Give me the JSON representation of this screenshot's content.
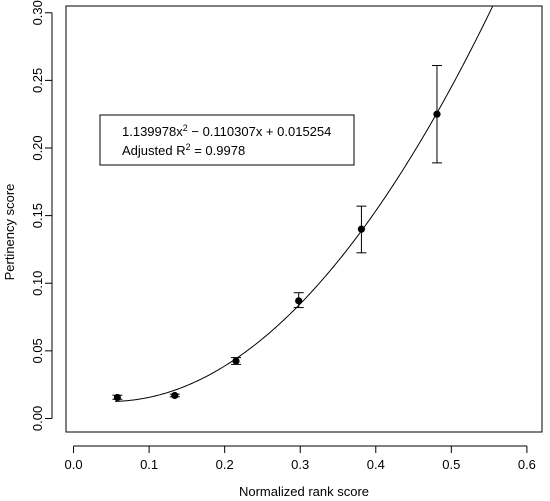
{
  "chart_data": {
    "type": "scatter",
    "title": "",
    "xlabel": "Normalized rank score",
    "ylabel": "Pertinency score",
    "xlim": [
      -0.01,
      0.62
    ],
    "ylim": [
      -0.01,
      0.305
    ],
    "x_ticks": [
      0.0,
      0.1,
      0.2,
      0.3,
      0.4,
      0.5,
      0.6
    ],
    "x_tick_labels": [
      "0.0",
      "0.1",
      "0.2",
      "0.3",
      "0.4",
      "0.5",
      "0.6"
    ],
    "y_ticks": [
      0.0,
      0.05,
      0.1,
      0.15,
      0.2,
      0.25,
      0.3
    ],
    "y_tick_labels": [
      "0.00",
      "0.05",
      "0.10",
      "0.15",
      "0.20",
      "0.25",
      "0.30"
    ],
    "grid": false,
    "legend": null,
    "series": [
      {
        "points": [
          {
            "x": 0.058,
            "y": 0.0155,
            "err_low": 0.0142,
            "err_high": 0.0172
          },
          {
            "x": 0.134,
            "y": 0.017,
            "err_low": 0.016,
            "err_high": 0.018
          },
          {
            "x": 0.215,
            "y": 0.0425,
            "err_low": 0.04,
            "err_high": 0.045
          },
          {
            "x": 0.298,
            "y": 0.087,
            "err_low": 0.082,
            "err_high": 0.093
          },
          {
            "x": 0.381,
            "y": 0.14,
            "err_low": 0.1225,
            "err_high": 0.157
          },
          {
            "x": 0.481,
            "y": 0.225,
            "err_low": 0.189,
            "err_high": 0.261
          }
        ]
      }
    ],
    "fit": {
      "a": 1.139978,
      "b": -0.110307,
      "c": 0.015254,
      "x_start": 0.055
    },
    "annotation": {
      "line1_main": "1.139978x",
      "line1_sup": "2",
      "line1_rest": " − 0.110307x + 0.015254",
      "line2_main": "Adjusted R",
      "line2_sup": "2",
      "line2_rest": " = 0.9978"
    }
  }
}
